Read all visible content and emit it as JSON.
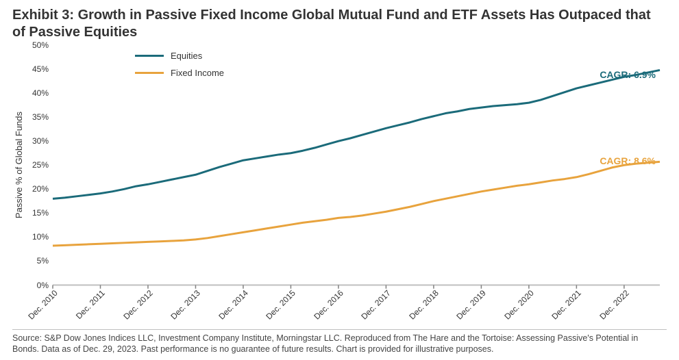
{
  "title": "Exhibit 3: Growth in Passive Fixed Income Global Mutual Fund and ETF Assets Has Outpaced that of Passive Equities",
  "ylabel": "Passive % of Global Funds",
  "footer": "Source: S&P Dow Jones Indices LLC, Investment Company Institute, Morningstar LLC. Reproduced from The Hare and the Tortoise: Assessing Passive's Potential in Bonds. Data as of Dec. 29, 2023. Past performance is no guarantee of future results. Chart is provided for illustrative purposes.",
  "chart": {
    "type": "line",
    "background_color": "#ffffff",
    "grid_color": "#bfbfbf",
    "axis_color": "#bfbfbf",
    "tick_color": "#808080",
    "ylim": [
      0,
      50
    ],
    "ytick_step": 5,
    "ytick_suffix": "%",
    "x_categories": [
      "Dec. 2010",
      "Dec. 2011",
      "Dec. 2012",
      "Dec. 2013",
      "Dec. 2014",
      "Dec. 2015",
      "Dec. 2016",
      "Dec. 2017",
      "Dec. 2018",
      "Dec. 2019",
      "Dec. 2020",
      "Dec. 2021",
      "Dec. 2022"
    ],
    "x_points_per_category": 4,
    "series": [
      {
        "name": "Equities",
        "color": "#1b6b7a",
        "line_width": 3,
        "cagr_label": "CAGR: 6.9%",
        "cagr_y_pct": 10,
        "values": [
          18.0,
          18.2,
          18.5,
          18.8,
          19.1,
          19.5,
          20.0,
          20.6,
          21.0,
          21.5,
          22.0,
          22.5,
          23.0,
          23.8,
          24.6,
          25.3,
          26.0,
          26.4,
          26.8,
          27.2,
          27.5,
          28.0,
          28.6,
          29.3,
          30.0,
          30.6,
          31.3,
          32.0,
          32.7,
          33.3,
          33.9,
          34.6,
          35.2,
          35.8,
          36.2,
          36.7,
          37.0,
          37.3,
          37.5,
          37.7,
          38.0,
          38.6,
          39.4,
          40.2,
          41.0,
          41.6,
          42.2,
          42.8,
          43.4,
          43.8,
          44.3,
          44.8
        ]
      },
      {
        "name": "Fixed Income",
        "color": "#e8a33d",
        "line_width": 3,
        "cagr_label": "CAGR: 8.6%",
        "cagr_y_pct": 46,
        "values": [
          8.2,
          8.3,
          8.4,
          8.5,
          8.6,
          8.7,
          8.8,
          8.9,
          9.0,
          9.1,
          9.2,
          9.3,
          9.5,
          9.8,
          10.2,
          10.6,
          11.0,
          11.4,
          11.8,
          12.2,
          12.6,
          13.0,
          13.3,
          13.6,
          14.0,
          14.2,
          14.5,
          14.9,
          15.3,
          15.8,
          16.3,
          16.9,
          17.5,
          18.0,
          18.5,
          19.0,
          19.5,
          19.9,
          20.3,
          20.7,
          21.0,
          21.4,
          21.8,
          22.1,
          22.5,
          23.1,
          23.8,
          24.5,
          25.0,
          25.3,
          25.5,
          25.7
        ]
      }
    ],
    "legend": {
      "items": [
        "Equities",
        "Fixed Income"
      ]
    },
    "label_fontsize": 12,
    "title_fontsize": 20
  }
}
